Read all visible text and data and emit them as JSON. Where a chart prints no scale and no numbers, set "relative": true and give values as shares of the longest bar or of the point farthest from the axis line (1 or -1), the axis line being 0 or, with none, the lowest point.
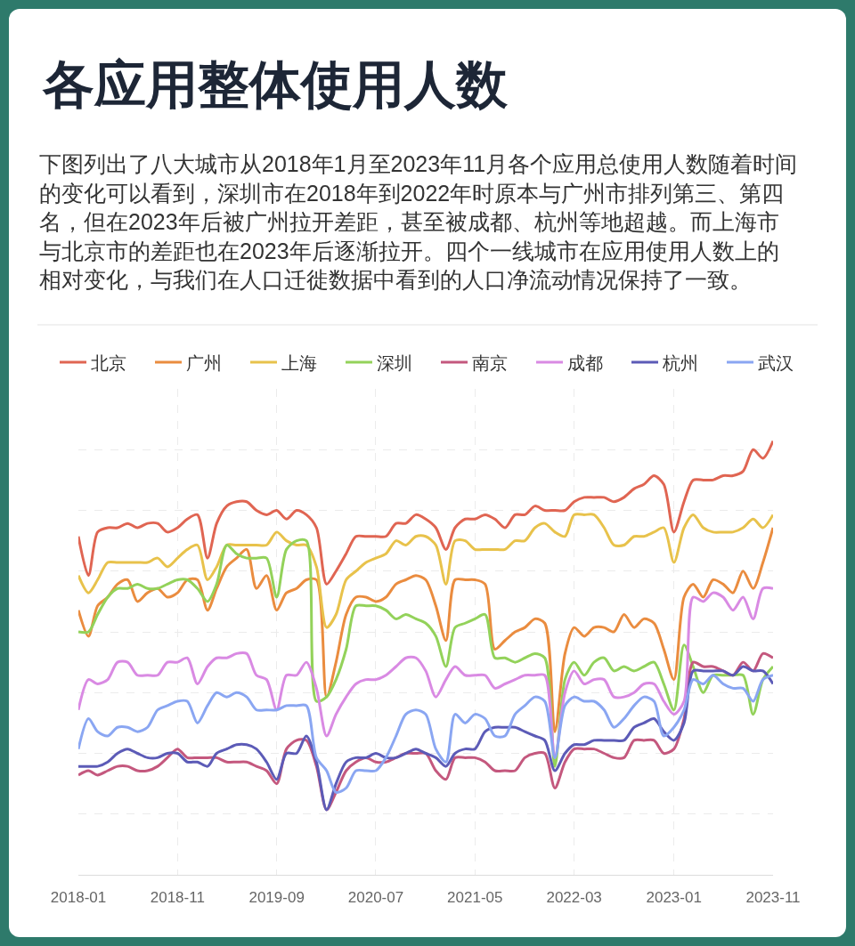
{
  "chart_data": {
    "type": "line",
    "relative": true,
    "title": "各应用整体使用人数",
    "subtitle": "下图列出了八大城市从2018年1月至2023年11月各个应用总使用人数随着时间的变化可以看到，深圳市在2018年到2022年时原本与广州市排列第三、第四名，但在2023年后被广州拉开差距，甚至被成都、杭州等地超越。而上海市与北京市的差距也在2023年后逐渐拉开。四个一线城市在应用使用人数上的相对变化，与我们在人口迁徙数据中看到的人口净流动情况保持了一致。",
    "x": [
      "2018-01",
      "2018-02",
      "2018-03",
      "2018-04",
      "2018-05",
      "2018-06",
      "2018-07",
      "2018-08",
      "2018-09",
      "2018-10",
      "2018-11",
      "2018-12",
      "2019-01",
      "2019-02",
      "2019-03",
      "2019-04",
      "2019-05",
      "2019-06",
      "2019-07",
      "2019-08",
      "2019-09",
      "2019-10",
      "2019-11",
      "2019-12",
      "2020-01",
      "2020-02",
      "2020-03",
      "2020-04",
      "2020-05",
      "2020-06",
      "2020-07",
      "2020-08",
      "2020-09",
      "2020-10",
      "2020-11",
      "2020-12",
      "2021-01",
      "2021-02",
      "2021-03",
      "2021-04",
      "2021-05",
      "2021-06",
      "2021-07",
      "2021-08",
      "2021-09",
      "2021-10",
      "2021-11",
      "2021-12",
      "2022-01",
      "2022-02",
      "2022-03",
      "2022-04",
      "2022-05",
      "2022-06",
      "2022-07",
      "2022-08",
      "2022-09",
      "2022-10",
      "2022-11",
      "2022-12",
      "2023-01",
      "2023-02",
      "2023-03",
      "2023-04",
      "2023-05",
      "2023-06",
      "2023-07",
      "2023-08",
      "2023-09",
      "2023-10",
      "2023-11"
    ],
    "xlim": [
      "2018-01",
      "2023-11"
    ],
    "xticks": [
      "2018-01",
      "2018-11",
      "2019-09",
      "2020-07",
      "2021-05",
      "2022-03",
      "2023-01",
      "2023-11"
    ],
    "grid": true,
    "legend": "top left",
    "series": [
      {
        "name": "北京",
        "color": "#e06552",
        "values": [
          0.78,
          0.69,
          0.79,
          0.8,
          0.8,
          0.81,
          0.8,
          0.81,
          0.81,
          0.79,
          0.8,
          0.82,
          0.83,
          0.73,
          0.81,
          0.85,
          0.86,
          0.86,
          0.84,
          0.83,
          0.84,
          0.82,
          0.84,
          0.83,
          0.8,
          0.67,
          0.7,
          0.74,
          0.78,
          0.78,
          0.78,
          0.78,
          0.81,
          0.81,
          0.83,
          0.82,
          0.8,
          0.75,
          0.8,
          0.82,
          0.82,
          0.83,
          0.82,
          0.8,
          0.83,
          0.83,
          0.85,
          0.84,
          0.84,
          0.84,
          0.86,
          0.87,
          0.87,
          0.87,
          0.86,
          0.87,
          0.89,
          0.9,
          0.92,
          0.9,
          0.79,
          0.86,
          0.91,
          0.91,
          0.91,
          0.92,
          0.92,
          0.93,
          0.98,
          0.96,
          1.0
        ]
      },
      {
        "name": "广州",
        "color": "#ea8c3f",
        "values": [
          0.61,
          0.55,
          0.62,
          0.64,
          0.67,
          0.68,
          0.63,
          0.65,
          0.66,
          0.64,
          0.65,
          0.68,
          0.68,
          0.61,
          0.66,
          0.71,
          0.73,
          0.75,
          0.66,
          0.69,
          0.61,
          0.65,
          0.66,
          0.68,
          0.68,
          0.41,
          0.49,
          0.6,
          0.64,
          0.64,
          0.63,
          0.64,
          0.67,
          0.68,
          0.69,
          0.68,
          0.62,
          0.54,
          0.68,
          0.68,
          0.68,
          0.67,
          0.52,
          0.54,
          0.56,
          0.57,
          0.59,
          0.58,
          0.33,
          0.51,
          0.57,
          0.55,
          0.57,
          0.57,
          0.56,
          0.6,
          0.57,
          0.59,
          0.58,
          0.52,
          0.45,
          0.64,
          0.67,
          0.64,
          0.68,
          0.67,
          0.65,
          0.7,
          0.66,
          0.72,
          0.8
        ]
      },
      {
        "name": "上海",
        "color": "#e8c24b",
        "values": [
          0.69,
          0.65,
          0.68,
          0.72,
          0.72,
          0.72,
          0.72,
          0.72,
          0.73,
          0.71,
          0.73,
          0.75,
          0.76,
          0.68,
          0.71,
          0.76,
          0.76,
          0.76,
          0.76,
          0.76,
          0.79,
          0.77,
          0.76,
          0.76,
          0.71,
          0.57,
          0.6,
          0.68,
          0.7,
          0.72,
          0.73,
          0.74,
          0.77,
          0.76,
          0.78,
          0.78,
          0.76,
          0.67,
          0.77,
          0.77,
          0.75,
          0.75,
          0.75,
          0.75,
          0.77,
          0.77,
          0.8,
          0.81,
          0.79,
          0.78,
          0.83,
          0.83,
          0.83,
          0.8,
          0.76,
          0.76,
          0.78,
          0.78,
          0.79,
          0.8,
          0.72,
          0.8,
          0.83,
          0.8,
          0.79,
          0.79,
          0.79,
          0.8,
          0.82,
          0.8,
          0.83
        ]
      },
      {
        "name": "深圳",
        "color": "#93d25a",
        "values": [
          0.56,
          0.56,
          0.6,
          0.64,
          0.66,
          0.66,
          0.67,
          0.66,
          0.66,
          0.67,
          0.68,
          0.68,
          0.66,
          0.63,
          0.67,
          0.76,
          0.74,
          0.73,
          0.73,
          0.73,
          0.64,
          0.75,
          0.77,
          0.77,
          0.4,
          0.41,
          0.45,
          0.52,
          0.62,
          0.62,
          0.62,
          0.61,
          0.59,
          0.6,
          0.59,
          0.58,
          0.55,
          0.48,
          0.57,
          0.58,
          0.59,
          0.6,
          0.5,
          0.5,
          0.49,
          0.5,
          0.51,
          0.5,
          0.25,
          0.45,
          0.49,
          0.46,
          0.49,
          0.5,
          0.47,
          0.48,
          0.47,
          0.48,
          0.49,
          0.44,
          0.38,
          0.53,
          0.48,
          0.42,
          0.46,
          0.46,
          0.46,
          0.46,
          0.37,
          0.45,
          0.48
        ]
      },
      {
        "name": "南京",
        "color": "#c4587e",
        "values": [
          0.23,
          0.24,
          0.23,
          0.24,
          0.25,
          0.25,
          0.24,
          0.24,
          0.25,
          0.27,
          0.29,
          0.27,
          0.27,
          0.27,
          0.27,
          0.26,
          0.26,
          0.26,
          0.25,
          0.24,
          0.21,
          0.29,
          0.31,
          0.31,
          0.25,
          0.15,
          0.19,
          0.24,
          0.26,
          0.27,
          0.26,
          0.26,
          0.27,
          0.28,
          0.28,
          0.28,
          0.24,
          0.22,
          0.27,
          0.27,
          0.27,
          0.26,
          0.24,
          0.24,
          0.24,
          0.27,
          0.28,
          0.28,
          0.2,
          0.26,
          0.29,
          0.29,
          0.29,
          0.28,
          0.27,
          0.27,
          0.31,
          0.31,
          0.31,
          0.28,
          0.29,
          0.36,
          0.49,
          0.48,
          0.48,
          0.47,
          0.46,
          0.49,
          0.47,
          0.51,
          0.5
        ]
      },
      {
        "name": "成都",
        "color": "#d98ae3",
        "values": [
          0.38,
          0.45,
          0.44,
          0.45,
          0.49,
          0.49,
          0.46,
          0.46,
          0.46,
          0.49,
          0.49,
          0.5,
          0.44,
          0.48,
          0.5,
          0.5,
          0.51,
          0.51,
          0.46,
          0.45,
          0.38,
          0.46,
          0.46,
          0.49,
          0.43,
          0.32,
          0.37,
          0.41,
          0.44,
          0.45,
          0.45,
          0.46,
          0.48,
          0.5,
          0.5,
          0.47,
          0.41,
          0.45,
          0.48,
          0.46,
          0.46,
          0.46,
          0.43,
          0.44,
          0.45,
          0.46,
          0.46,
          0.46,
          0.27,
          0.42,
          0.47,
          0.44,
          0.45,
          0.45,
          0.41,
          0.41,
          0.42,
          0.44,
          0.44,
          0.4,
          0.37,
          0.4,
          0.64,
          0.63,
          0.65,
          0.64,
          0.61,
          0.64,
          0.59,
          0.66,
          0.66
        ]
      },
      {
        "name": "杭州",
        "color": "#5c5bb7",
        "values": [
          0.25,
          0.25,
          0.25,
          0.26,
          0.28,
          0.29,
          0.28,
          0.27,
          0.27,
          0.28,
          0.28,
          0.26,
          0.26,
          0.25,
          0.28,
          0.29,
          0.3,
          0.3,
          0.29,
          0.26,
          0.22,
          0.28,
          0.28,
          0.32,
          0.26,
          0.15,
          0.21,
          0.26,
          0.27,
          0.27,
          0.28,
          0.27,
          0.27,
          0.28,
          0.29,
          0.28,
          0.27,
          0.25,
          0.28,
          0.29,
          0.29,
          0.33,
          0.34,
          0.34,
          0.34,
          0.33,
          0.32,
          0.31,
          0.24,
          0.28,
          0.3,
          0.3,
          0.31,
          0.31,
          0.31,
          0.31,
          0.34,
          0.35,
          0.36,
          0.33,
          0.31,
          0.35,
          0.47,
          0.47,
          0.47,
          0.47,
          0.46,
          0.48,
          0.47,
          0.47,
          0.44
        ]
      },
      {
        "name": "武汉",
        "color": "#8aa6f2",
        "values": [
          0.29,
          0.36,
          0.33,
          0.32,
          0.34,
          0.34,
          0.33,
          0.34,
          0.38,
          0.39,
          0.4,
          0.4,
          0.35,
          0.39,
          0.42,
          0.41,
          0.42,
          0.41,
          0.38,
          0.38,
          0.38,
          0.39,
          0.39,
          0.39,
          0.27,
          0.24,
          0.19,
          0.2,
          0.24,
          0.24,
          0.24,
          0.27,
          0.32,
          0.37,
          0.38,
          0.37,
          0.29,
          0.26,
          0.37,
          0.35,
          0.37,
          0.36,
          0.32,
          0.32,
          0.37,
          0.39,
          0.41,
          0.4,
          0.27,
          0.39,
          0.41,
          0.4,
          0.4,
          0.38,
          0.34,
          0.36,
          0.39,
          0.41,
          0.4,
          0.32,
          0.34,
          0.38,
          0.45,
          0.44,
          0.46,
          0.44,
          0.43,
          0.43,
          0.4,
          0.45,
          0.46
        ]
      }
    ]
  }
}
